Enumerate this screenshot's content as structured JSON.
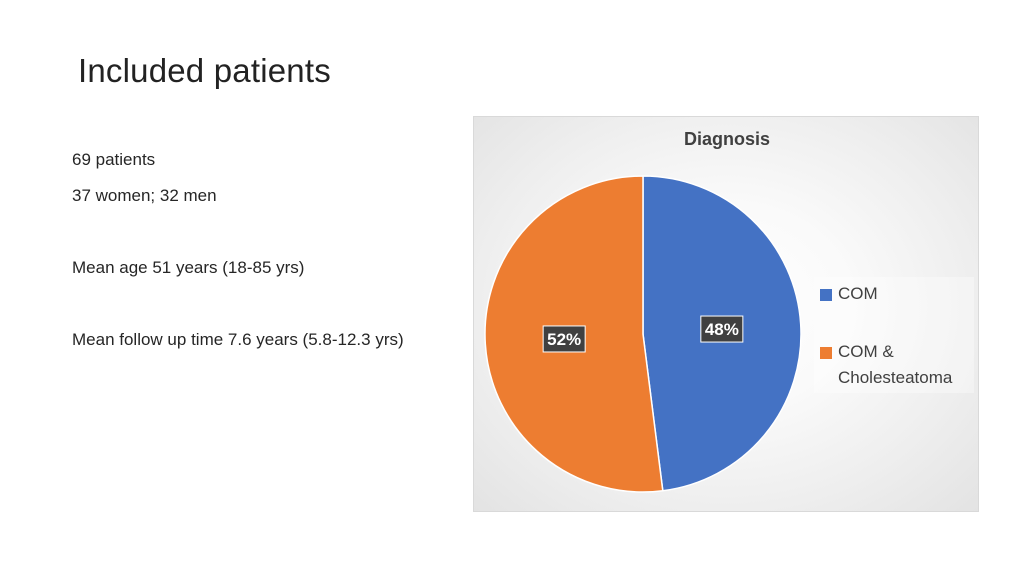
{
  "slide": {
    "title": "Included patients",
    "bullets": [
      "69 patients",
      "37 women; 32 men",
      "Mean age 51 years (18-85 yrs)",
      "Mean follow up time 7.6 years (5.8-12.3 yrs)"
    ]
  },
  "chart_data": {
    "type": "pie",
    "title": "Diagnosis",
    "categories": [
      "COM",
      "COM & Cholesteatoma"
    ],
    "values": [
      48,
      52
    ],
    "data_labels": [
      "48%",
      "52%"
    ],
    "colors": [
      "#4472c4",
      "#ed7d31"
    ],
    "legend_position": "right",
    "start_angle_deg": 0,
    "direction": "clockwise"
  },
  "legend": {
    "items": [
      {
        "label": "COM",
        "color": "#4472c4"
      },
      {
        "label": "COM & Cholesteatoma",
        "color": "#ed7d31"
      }
    ]
  }
}
